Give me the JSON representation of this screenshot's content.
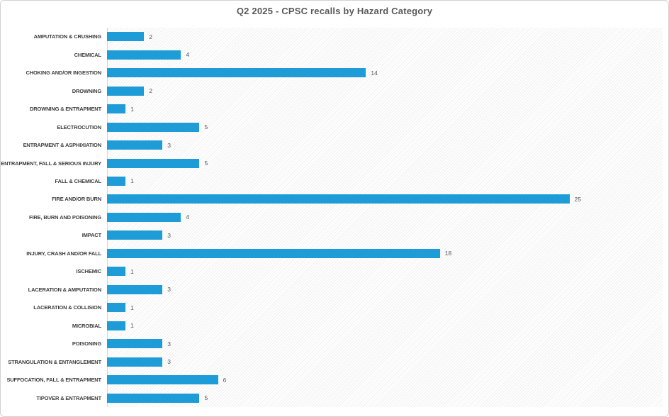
{
  "chart_data": {
    "type": "bar",
    "orientation": "horizontal",
    "title": "Q2 2025 - CPSC recalls by Hazard Category",
    "categories": [
      "AMPUTATION & CRUSHING",
      "CHEMICAL",
      "CHOKING AND/OR INGESTION",
      "DROWNING",
      "DROWNING & ENTRAPMENT",
      "ELECTROCUTION",
      "ENTRAPMENT & ASPHIXIATION",
      "ENTRAPMENT, FALL & SERIOUS INJURY",
      "FALL & CHEMICAL",
      "FIRE AND/OR BURN",
      "FIRE, BURN AND POISONING",
      "IMPACT",
      "INJURY, CRASH AND/OR FALL",
      "ISCHEMIC",
      "LACERATION & AMPUTATION",
      "LACERATION & COLLISION",
      "MICROBIAL",
      "POISONING",
      "STRANGULATION & ENTANGLEMENT",
      "SUFFOCATION, FALL & ENTRAPMENT",
      "TIPOVER & ENTRAPMENT"
    ],
    "values": [
      2,
      4,
      14,
      2,
      1,
      5,
      3,
      5,
      1,
      25,
      4,
      3,
      18,
      1,
      3,
      1,
      1,
      3,
      3,
      6,
      5
    ],
    "xlabel": "",
    "ylabel": "",
    "xlim": [
      0,
      30
    ],
    "grid": false,
    "legend": false,
    "value_labels": true
  },
  "colors": {
    "bar": "#1E9CD7",
    "title": "#595959",
    "category_label": "#3d3d3d",
    "value_label": "#595959",
    "axis_line": "#d9d9d9",
    "plot_hatch": "#f0f0f0",
    "border": "#d2d2d2"
  }
}
